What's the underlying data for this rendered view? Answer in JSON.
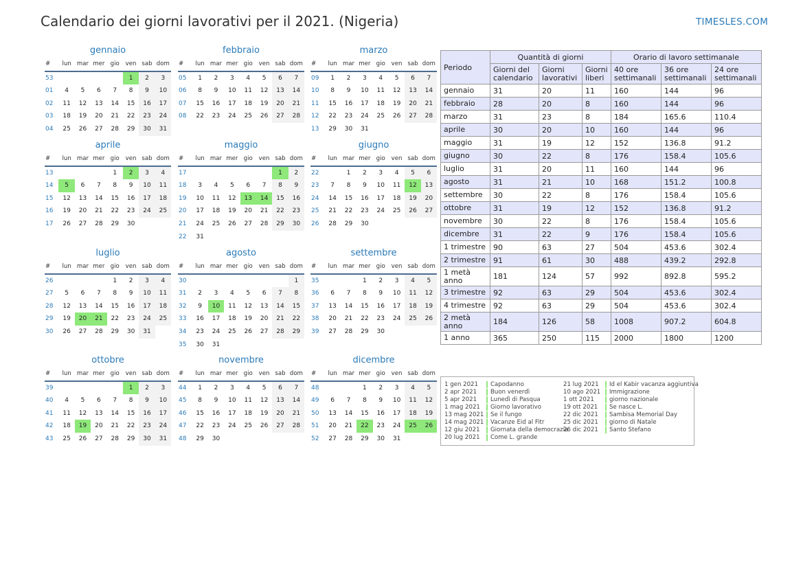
{
  "title": "Calendario dei giorni lavorativi per il 2021. (Nigeria)",
  "brand": "TIMESLES.COM",
  "colors": {
    "holiday": "#8ee87a",
    "weekend": "#f2f2f2",
    "accent": "#2a7ab8",
    "table_header": "#e3e6fa"
  },
  "day_headers": [
    "#",
    "lun",
    "mar",
    "mer",
    "gio",
    "ven",
    "sab",
    "dom"
  ],
  "months": [
    {
      "name": "gennaio",
      "weeks": [
        [
          "53",
          "",
          "",
          "",
          "",
          "1",
          "2",
          "3"
        ],
        [
          "01",
          "4",
          "5",
          "6",
          "7",
          "8",
          "9",
          "10"
        ],
        [
          "02",
          "11",
          "12",
          "13",
          "14",
          "15",
          "16",
          "17"
        ],
        [
          "03",
          "18",
          "19",
          "20",
          "21",
          "22",
          "23",
          "24"
        ],
        [
          "04",
          "25",
          "26",
          "27",
          "28",
          "29",
          "30",
          "31"
        ]
      ],
      "holidays": [
        "1"
      ]
    },
    {
      "name": "febbraio",
      "weeks": [
        [
          "05",
          "1",
          "2",
          "3",
          "4",
          "5",
          "6",
          "7"
        ],
        [
          "06",
          "8",
          "9",
          "10",
          "11",
          "12",
          "13",
          "14"
        ],
        [
          "07",
          "15",
          "16",
          "17",
          "18",
          "19",
          "20",
          "21"
        ],
        [
          "08",
          "22",
          "23",
          "24",
          "25",
          "26",
          "27",
          "28"
        ]
      ],
      "holidays": []
    },
    {
      "name": "marzo",
      "weeks": [
        [
          "09",
          "1",
          "2",
          "3",
          "4",
          "5",
          "6",
          "7"
        ],
        [
          "10",
          "8",
          "9",
          "10",
          "11",
          "12",
          "13",
          "14"
        ],
        [
          "11",
          "15",
          "16",
          "17",
          "18",
          "19",
          "20",
          "21"
        ],
        [
          "12",
          "22",
          "23",
          "24",
          "25",
          "26",
          "27",
          "28"
        ],
        [
          "13",
          "29",
          "30",
          "31",
          "",
          "",
          "",
          ""
        ]
      ],
      "holidays": []
    },
    {
      "name": "aprile",
      "weeks": [
        [
          "13",
          "",
          "",
          "",
          "1",
          "2",
          "3",
          "4"
        ],
        [
          "14",
          "5",
          "6",
          "7",
          "8",
          "9",
          "10",
          "11"
        ],
        [
          "15",
          "12",
          "13",
          "14",
          "15",
          "16",
          "17",
          "18"
        ],
        [
          "16",
          "19",
          "20",
          "21",
          "22",
          "23",
          "24",
          "25"
        ],
        [
          "17",
          "26",
          "27",
          "28",
          "29",
          "30",
          "",
          ""
        ]
      ],
      "holidays": [
        "2",
        "5"
      ]
    },
    {
      "name": "maggio",
      "weeks": [
        [
          "17",
          "",
          "",
          "",
          "",
          "",
          "1",
          "2"
        ],
        [
          "18",
          "3",
          "4",
          "5",
          "6",
          "7",
          "8",
          "9"
        ],
        [
          "19",
          "10",
          "11",
          "12",
          "13",
          "14",
          "15",
          "16"
        ],
        [
          "20",
          "17",
          "18",
          "19",
          "20",
          "21",
          "22",
          "23"
        ],
        [
          "21",
          "24",
          "25",
          "26",
          "27",
          "28",
          "29",
          "30"
        ],
        [
          "22",
          "31",
          "",
          "",
          "",
          "",
          "",
          ""
        ]
      ],
      "holidays": [
        "1",
        "13",
        "14"
      ]
    },
    {
      "name": "giugno",
      "weeks": [
        [
          "22",
          "",
          "1",
          "2",
          "3",
          "4",
          "5",
          "6"
        ],
        [
          "23",
          "7",
          "8",
          "9",
          "10",
          "11",
          "12",
          "13"
        ],
        [
          "24",
          "14",
          "15",
          "16",
          "17",
          "18",
          "19",
          "20"
        ],
        [
          "25",
          "21",
          "22",
          "23",
          "24",
          "25",
          "26",
          "27"
        ],
        [
          "26",
          "28",
          "29",
          "30",
          "",
          "",
          "",
          ""
        ]
      ],
      "holidays": [
        "12"
      ]
    },
    {
      "name": "luglio",
      "weeks": [
        [
          "26",
          "",
          "",
          "",
          "1",
          "2",
          "3",
          "4"
        ],
        [
          "27",
          "5",
          "6",
          "7",
          "8",
          "9",
          "10",
          "11"
        ],
        [
          "28",
          "12",
          "13",
          "14",
          "15",
          "16",
          "17",
          "18"
        ],
        [
          "29",
          "19",
          "20",
          "21",
          "22",
          "23",
          "24",
          "25"
        ],
        [
          "30",
          "26",
          "27",
          "28",
          "29",
          "30",
          "31",
          ""
        ]
      ],
      "holidays": [
        "20",
        "21"
      ]
    },
    {
      "name": "agosto",
      "weeks": [
        [
          "30",
          "",
          "",
          "",
          "",
          "",
          "",
          "1"
        ],
        [
          "31",
          "2",
          "3",
          "4",
          "5",
          "6",
          "7",
          "8"
        ],
        [
          "32",
          "9",
          "10",
          "11",
          "12",
          "13",
          "14",
          "15"
        ],
        [
          "33",
          "16",
          "17",
          "18",
          "19",
          "20",
          "21",
          "22"
        ],
        [
          "34",
          "23",
          "24",
          "25",
          "26",
          "27",
          "28",
          "29"
        ],
        [
          "35",
          "30",
          "31",
          "",
          "",
          "",
          "",
          ""
        ]
      ],
      "holidays": [
        "10"
      ]
    },
    {
      "name": "settembre",
      "weeks": [
        [
          "35",
          "",
          "",
          "1",
          "2",
          "3",
          "4",
          "5"
        ],
        [
          "36",
          "6",
          "7",
          "8",
          "9",
          "10",
          "11",
          "12"
        ],
        [
          "37",
          "13",
          "14",
          "15",
          "16",
          "17",
          "18",
          "19"
        ],
        [
          "38",
          "20",
          "21",
          "22",
          "23",
          "24",
          "25",
          "26"
        ],
        [
          "39",
          "27",
          "28",
          "29",
          "30",
          "",
          "",
          ""
        ]
      ],
      "holidays": []
    },
    {
      "name": "ottobre",
      "weeks": [
        [
          "39",
          "",
          "",
          "",
          "",
          "1",
          "2",
          "3"
        ],
        [
          "40",
          "4",
          "5",
          "6",
          "7",
          "8",
          "9",
          "10"
        ],
        [
          "41",
          "11",
          "12",
          "13",
          "14",
          "15",
          "16",
          "17"
        ],
        [
          "42",
          "18",
          "19",
          "20",
          "21",
          "22",
          "23",
          "24"
        ],
        [
          "43",
          "25",
          "26",
          "27",
          "28",
          "29",
          "30",
          "31"
        ]
      ],
      "holidays": [
        "1",
        "19"
      ]
    },
    {
      "name": "novembre",
      "weeks": [
        [
          "44",
          "1",
          "2",
          "3",
          "4",
          "5",
          "6",
          "7"
        ],
        [
          "45",
          "8",
          "9",
          "10",
          "11",
          "12",
          "13",
          "14"
        ],
        [
          "46",
          "15",
          "16",
          "17",
          "18",
          "19",
          "20",
          "21"
        ],
        [
          "47",
          "22",
          "23",
          "24",
          "25",
          "26",
          "27",
          "28"
        ],
        [
          "48",
          "29",
          "30",
          "",
          "",
          "",
          "",
          ""
        ]
      ],
      "holidays": []
    },
    {
      "name": "dicembre",
      "weeks": [
        [
          "48",
          "",
          "",
          "1",
          "2",
          "3",
          "4",
          "5"
        ],
        [
          "49",
          "6",
          "7",
          "8",
          "9",
          "10",
          "11",
          "12"
        ],
        [
          "50",
          "13",
          "14",
          "15",
          "16",
          "17",
          "18",
          "19"
        ],
        [
          "51",
          "20",
          "21",
          "22",
          "23",
          "24",
          "25",
          "26"
        ],
        [
          "52",
          "27",
          "28",
          "29",
          "30",
          "31",
          "",
          ""
        ]
      ],
      "holidays": [
        "22",
        "25",
        "26"
      ]
    }
  ],
  "table": {
    "periodo": "Periodo",
    "group1": "Quantità di giorni",
    "group2": "Orario di lavoro settimanale",
    "columns": [
      "Giorni del calendario",
      "Giorni lavorativi",
      "Giorni liberi",
      "40 ore settimanali",
      "36 ore settimanali",
      "24 ore settimanali"
    ],
    "rows": [
      [
        "gennaio",
        "31",
        "20",
        "11",
        "160",
        "144",
        "96"
      ],
      [
        "febbraio",
        "28",
        "20",
        "8",
        "160",
        "144",
        "96"
      ],
      [
        "marzo",
        "31",
        "23",
        "8",
        "184",
        "165.6",
        "110.4"
      ],
      [
        "aprile",
        "30",
        "20",
        "10",
        "160",
        "144",
        "96"
      ],
      [
        "maggio",
        "31",
        "19",
        "12",
        "152",
        "136.8",
        "91.2"
      ],
      [
        "giugno",
        "30",
        "22",
        "8",
        "176",
        "158.4",
        "105.6"
      ],
      [
        "luglio",
        "31",
        "20",
        "11",
        "160",
        "144",
        "96"
      ],
      [
        "agosto",
        "31",
        "21",
        "10",
        "168",
        "151.2",
        "100.8"
      ],
      [
        "settembre",
        "30",
        "22",
        "8",
        "176",
        "158.4",
        "105.6"
      ],
      [
        "ottobre",
        "31",
        "19",
        "12",
        "152",
        "136.8",
        "91.2"
      ],
      [
        "novembre",
        "30",
        "22",
        "8",
        "176",
        "158.4",
        "105.6"
      ],
      [
        "dicembre",
        "31",
        "22",
        "9",
        "176",
        "158.4",
        "105.6"
      ],
      [
        "1 trimestre",
        "90",
        "63",
        "27",
        "504",
        "453.6",
        "302.4"
      ],
      [
        "2 trimestre",
        "91",
        "61",
        "30",
        "488",
        "439.2",
        "292.8"
      ],
      [
        "1 metà anno",
        "181",
        "124",
        "57",
        "992",
        "892.8",
        "595.2"
      ],
      [
        "3 trimestre",
        "92",
        "63",
        "29",
        "504",
        "453.6",
        "302.4"
      ],
      [
        "4 trimestre",
        "92",
        "63",
        "29",
        "504",
        "453.6",
        "302.4"
      ],
      [
        "2 metà anno",
        "184",
        "126",
        "58",
        "1008",
        "907.2",
        "604.8"
      ],
      [
        "1 anno",
        "365",
        "250",
        "115",
        "2000",
        "1800",
        "1200"
      ]
    ]
  },
  "legend": [
    [
      [
        "1 gen 2021",
        "Capodanno"
      ],
      [
        "2 apr 2021",
        "Buon venerdì"
      ],
      [
        "5 apr 2021",
        "Lunedì di Pasqua"
      ],
      [
        "1 mag 2021",
        "Giorno lavorativo"
      ],
      [
        "13 mag 2021",
        "Se il fungo"
      ],
      [
        "14 mag 2021",
        "Vacanze Eid al Fitr"
      ],
      [
        "12 giu 2021",
        "Giornata della democrazia"
      ],
      [
        "20 lug 2021",
        "Come L. grande"
      ]
    ],
    [
      [
        "21 lug 2021",
        "Id el Kabir vacanza aggiuntiva"
      ],
      [
        "10 ago 2021",
        "Immigrazione"
      ],
      [
        "1 ott 2021",
        "giorno nazionale"
      ],
      [
        "19 ott 2021",
        "Se nasce L."
      ],
      [
        "22 dic 2021",
        "Sambisa Memorial Day"
      ],
      [
        "25 dic 2021",
        "giorno di Natale"
      ],
      [
        "26 dic 2021",
        "Santo Stefano"
      ]
    ]
  ]
}
